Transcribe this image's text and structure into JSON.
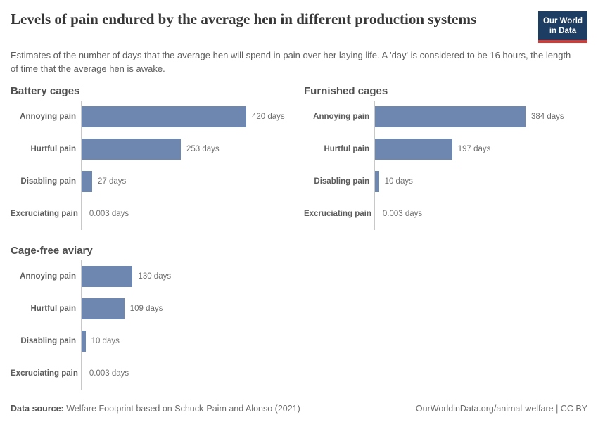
{
  "header": {
    "title": "Levels of pain endured by the average hen in different production systems",
    "subtitle": "Estimates of the number of days that the average hen will spend in pain over her laying life. A 'day' is considered to be 16 hours, the length of time that the average hen is awake.",
    "logo_line1": "Our World",
    "logo_line2": "in Data"
  },
  "chart_data": {
    "type": "bar",
    "orientation": "horizontal",
    "unit": "days",
    "categories": [
      "Annoying pain",
      "Hurtful pain",
      "Disabling pain",
      "Excruciating pain"
    ],
    "x_axis": {
      "min": 0,
      "max": 420,
      "gridlines": false,
      "tick_labels": false
    },
    "series": [
      {
        "name": "Battery cages",
        "values": [
          420,
          253,
          27,
          0.003
        ],
        "value_labels": [
          "420 days",
          "253 days",
          "27 days",
          "0.003 days"
        ]
      },
      {
        "name": "Furnished cages",
        "values": [
          384,
          197,
          10,
          0.003
        ],
        "value_labels": [
          "384 days",
          "197 days",
          "10 days",
          "0.003 days"
        ]
      },
      {
        "name": "Cage-free aviary",
        "values": [
          130,
          109,
          10,
          0.003
        ],
        "value_labels": [
          "130 days",
          "109 days",
          "10 days",
          "0.003 days"
        ]
      }
    ],
    "colors": {
      "bar": "#6e87b1",
      "logo_bg": "#1d3d63",
      "logo_accent": "#d73a34"
    }
  },
  "footer": {
    "source_label": "Data source:",
    "source_text": " Welfare Footprint based on Schuck-Paim and Alonso (2021)",
    "citation": "OurWorldinData.org/animal-welfare | CC BY"
  }
}
